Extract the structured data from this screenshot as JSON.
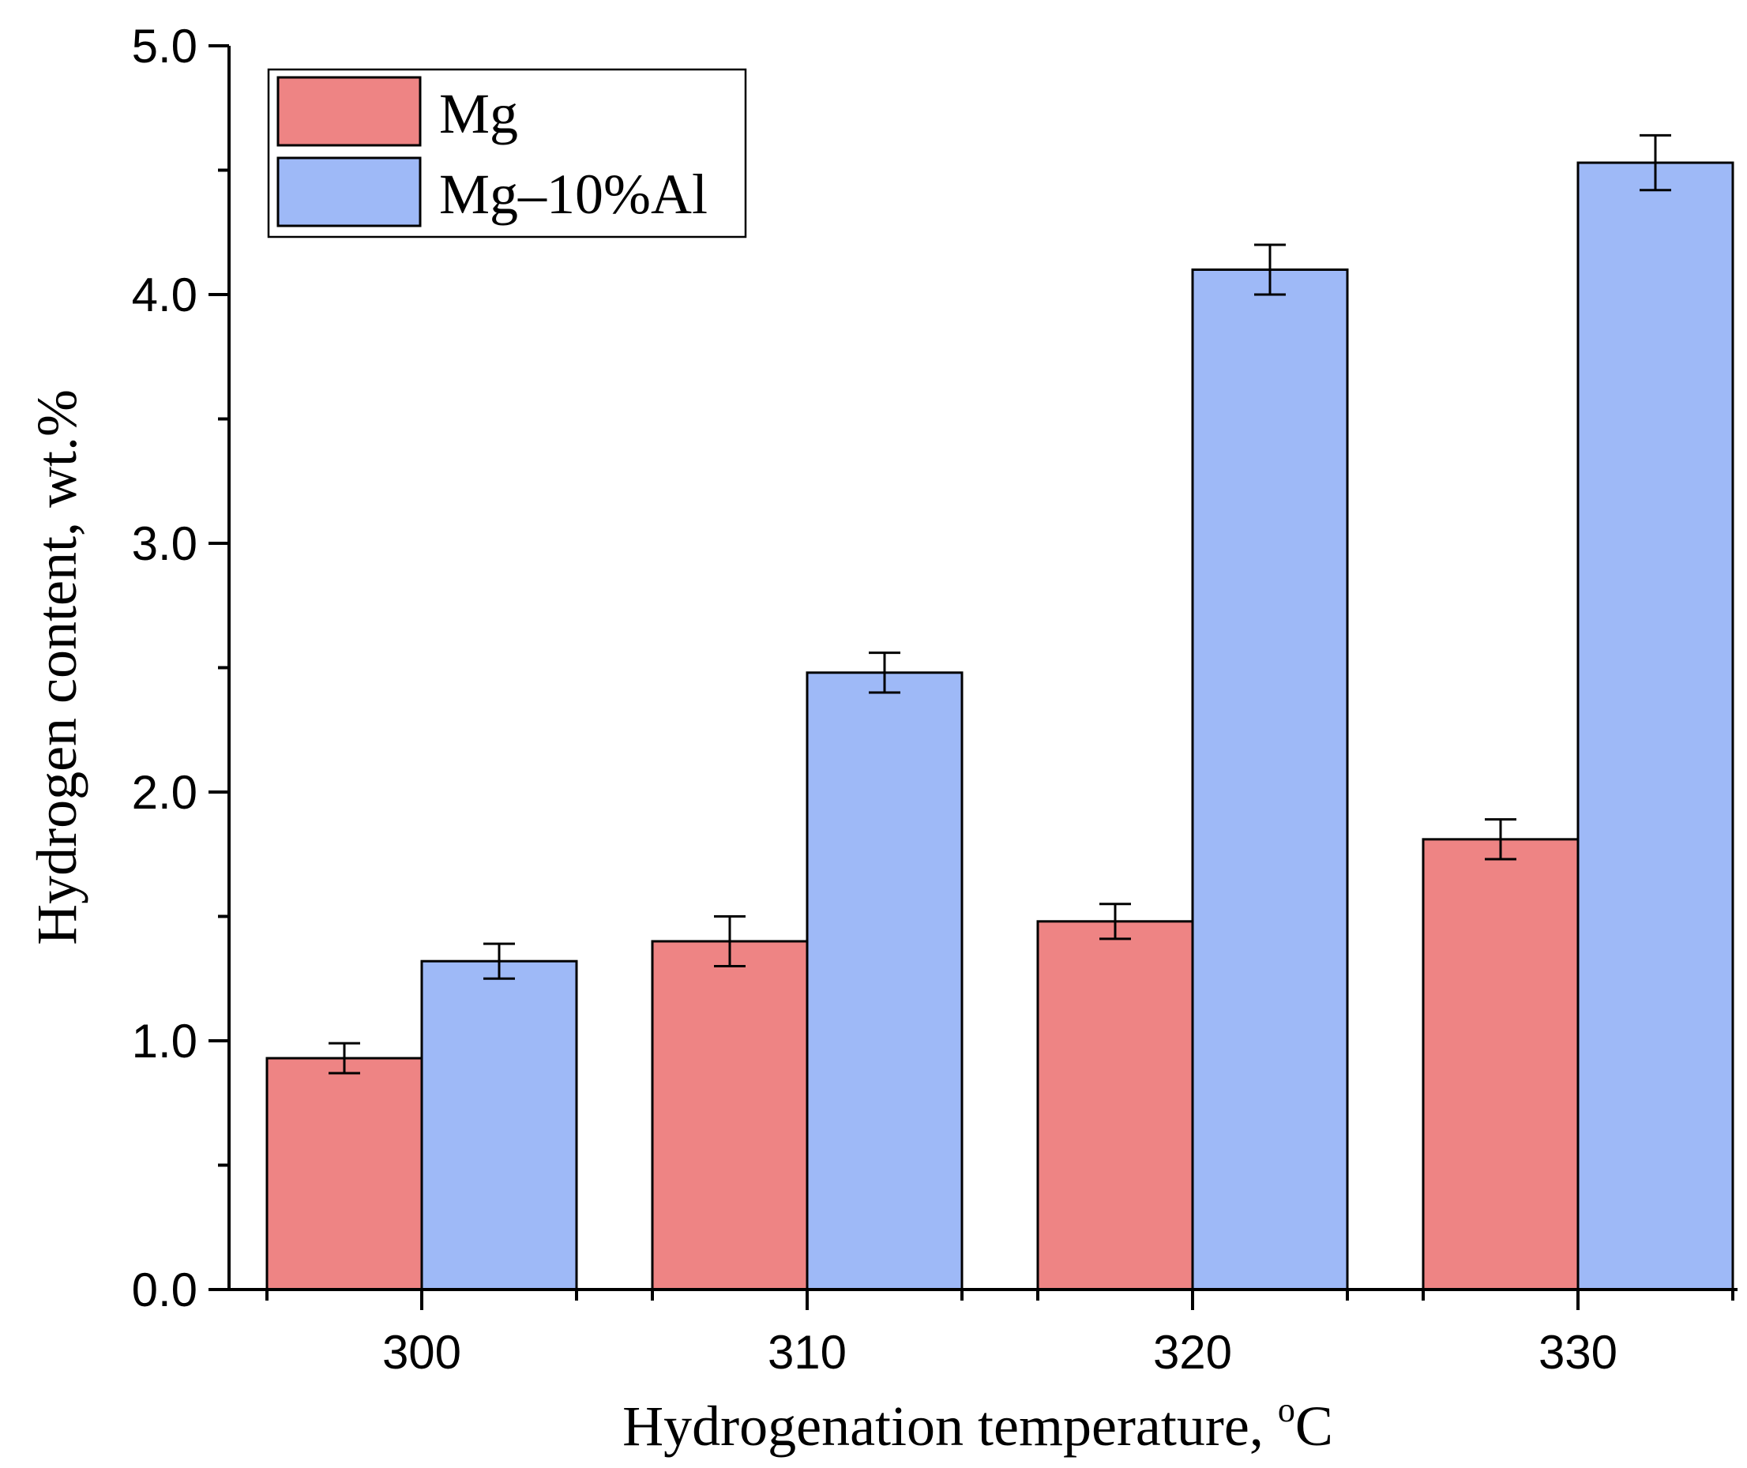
{
  "chart_data": {
    "type": "bar",
    "title": "",
    "xlabel": "Hydrogenation temperature, ",
    "xlabel_sup": "o",
    "xlabel_suffix": "C",
    "ylabel": "Hydrogen content, wt.%",
    "categories": [
      "300",
      "310",
      "320",
      "330"
    ],
    "ylim": [
      0.0,
      5.0
    ],
    "yticks": [
      "0.0",
      "1.0",
      "2.0",
      "3.0",
      "4.0",
      "5.0"
    ],
    "legend_position": "top-left",
    "grid": false,
    "series": [
      {
        "name": "Mg",
        "color": "#ee8484",
        "values": [
          0.93,
          1.4,
          1.48,
          1.81
        ],
        "errors": [
          0.06,
          0.1,
          0.07,
          0.08
        ]
      },
      {
        "name": "Mg–10%Al",
        "color": "#9eb9f7",
        "values": [
          1.32,
          2.48,
          4.1,
          4.53
        ],
        "errors": [
          0.07,
          0.08,
          0.1,
          0.11
        ]
      }
    ]
  }
}
